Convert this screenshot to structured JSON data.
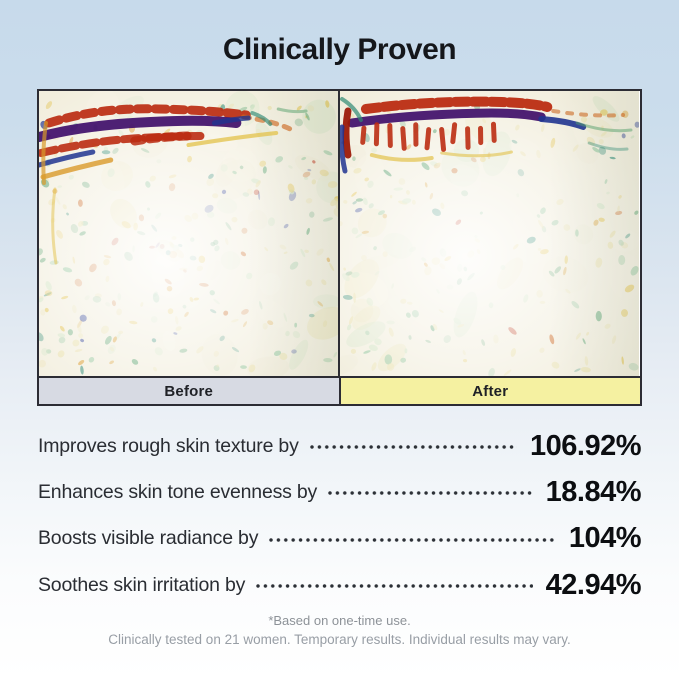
{
  "title": "Clinically Proven",
  "comparison": {
    "before_label": "Before",
    "after_label": "After",
    "before_bg": "#d7dae3",
    "after_bg": "#f5f1a1"
  },
  "stats": [
    {
      "label": "Improves rough skin texture by",
      "value": "106.92%"
    },
    {
      "label": "Enhances skin tone evenness by",
      "value": "18.84%"
    },
    {
      "label": "Boosts visible radiance by",
      "value": "104%"
    },
    {
      "label": "Soothes skin irritation by",
      "value": "42.94%"
    }
  ],
  "footnotes": {
    "line1": "*Based on one-time use.",
    "line2": "Clinically tested on 21 women. Temporary results. Individual results may vary."
  },
  "colors": {
    "background_top": "#c7daeb",
    "background_bottom": "#ffffff",
    "border": "#2c2c34",
    "title_text": "#15171b",
    "stat_text": "#2a2d33",
    "value_text": "#0c0e11",
    "footnote_text": "#8d9298",
    "heatmap": {
      "base": "#f2eedd",
      "red": "#bb2c12",
      "darkred": "#9c1a08",
      "purple": "#45156e",
      "navy": "#203490",
      "yellow": "#e3c24a",
      "amber": "#d99a2a",
      "orange": "#cc6a24",
      "teal": "#2f8a74",
      "green": "#55a06c",
      "palegreen": "#cfe3c2",
      "paleyellow": "#e9dfa8"
    }
  }
}
